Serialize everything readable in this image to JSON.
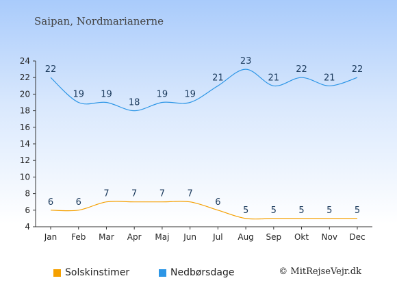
{
  "location_title": "Saipan, Nordmarianerne",
  "copyright": "© MitRejseVejr.dk",
  "colors": {
    "sun": "#f5a000",
    "rain": "#2d96e6"
  },
  "chart_data": {
    "type": "line",
    "categories": [
      "Jan",
      "Feb",
      "Mar",
      "Apr",
      "Maj",
      "Jun",
      "Jul",
      "Aug",
      "Sep",
      "Okt",
      "Nov",
      "Dec"
    ],
    "yticks": [
      4,
      6,
      8,
      10,
      12,
      14,
      16,
      18,
      20,
      22,
      24
    ],
    "ylim": [
      4,
      24
    ],
    "grid": false,
    "legend_position": "bottom",
    "series": [
      {
        "name": "Solskinstimer",
        "color_key": "sun",
        "values": [
          6,
          6,
          7,
          7,
          7,
          7,
          6,
          5,
          5,
          5,
          5,
          5
        ]
      },
      {
        "name": "Nedbørsdage",
        "color_key": "rain",
        "values": [
          22,
          19,
          19,
          18,
          19,
          19,
          21,
          23,
          21,
          22,
          21,
          22
        ]
      }
    ]
  }
}
